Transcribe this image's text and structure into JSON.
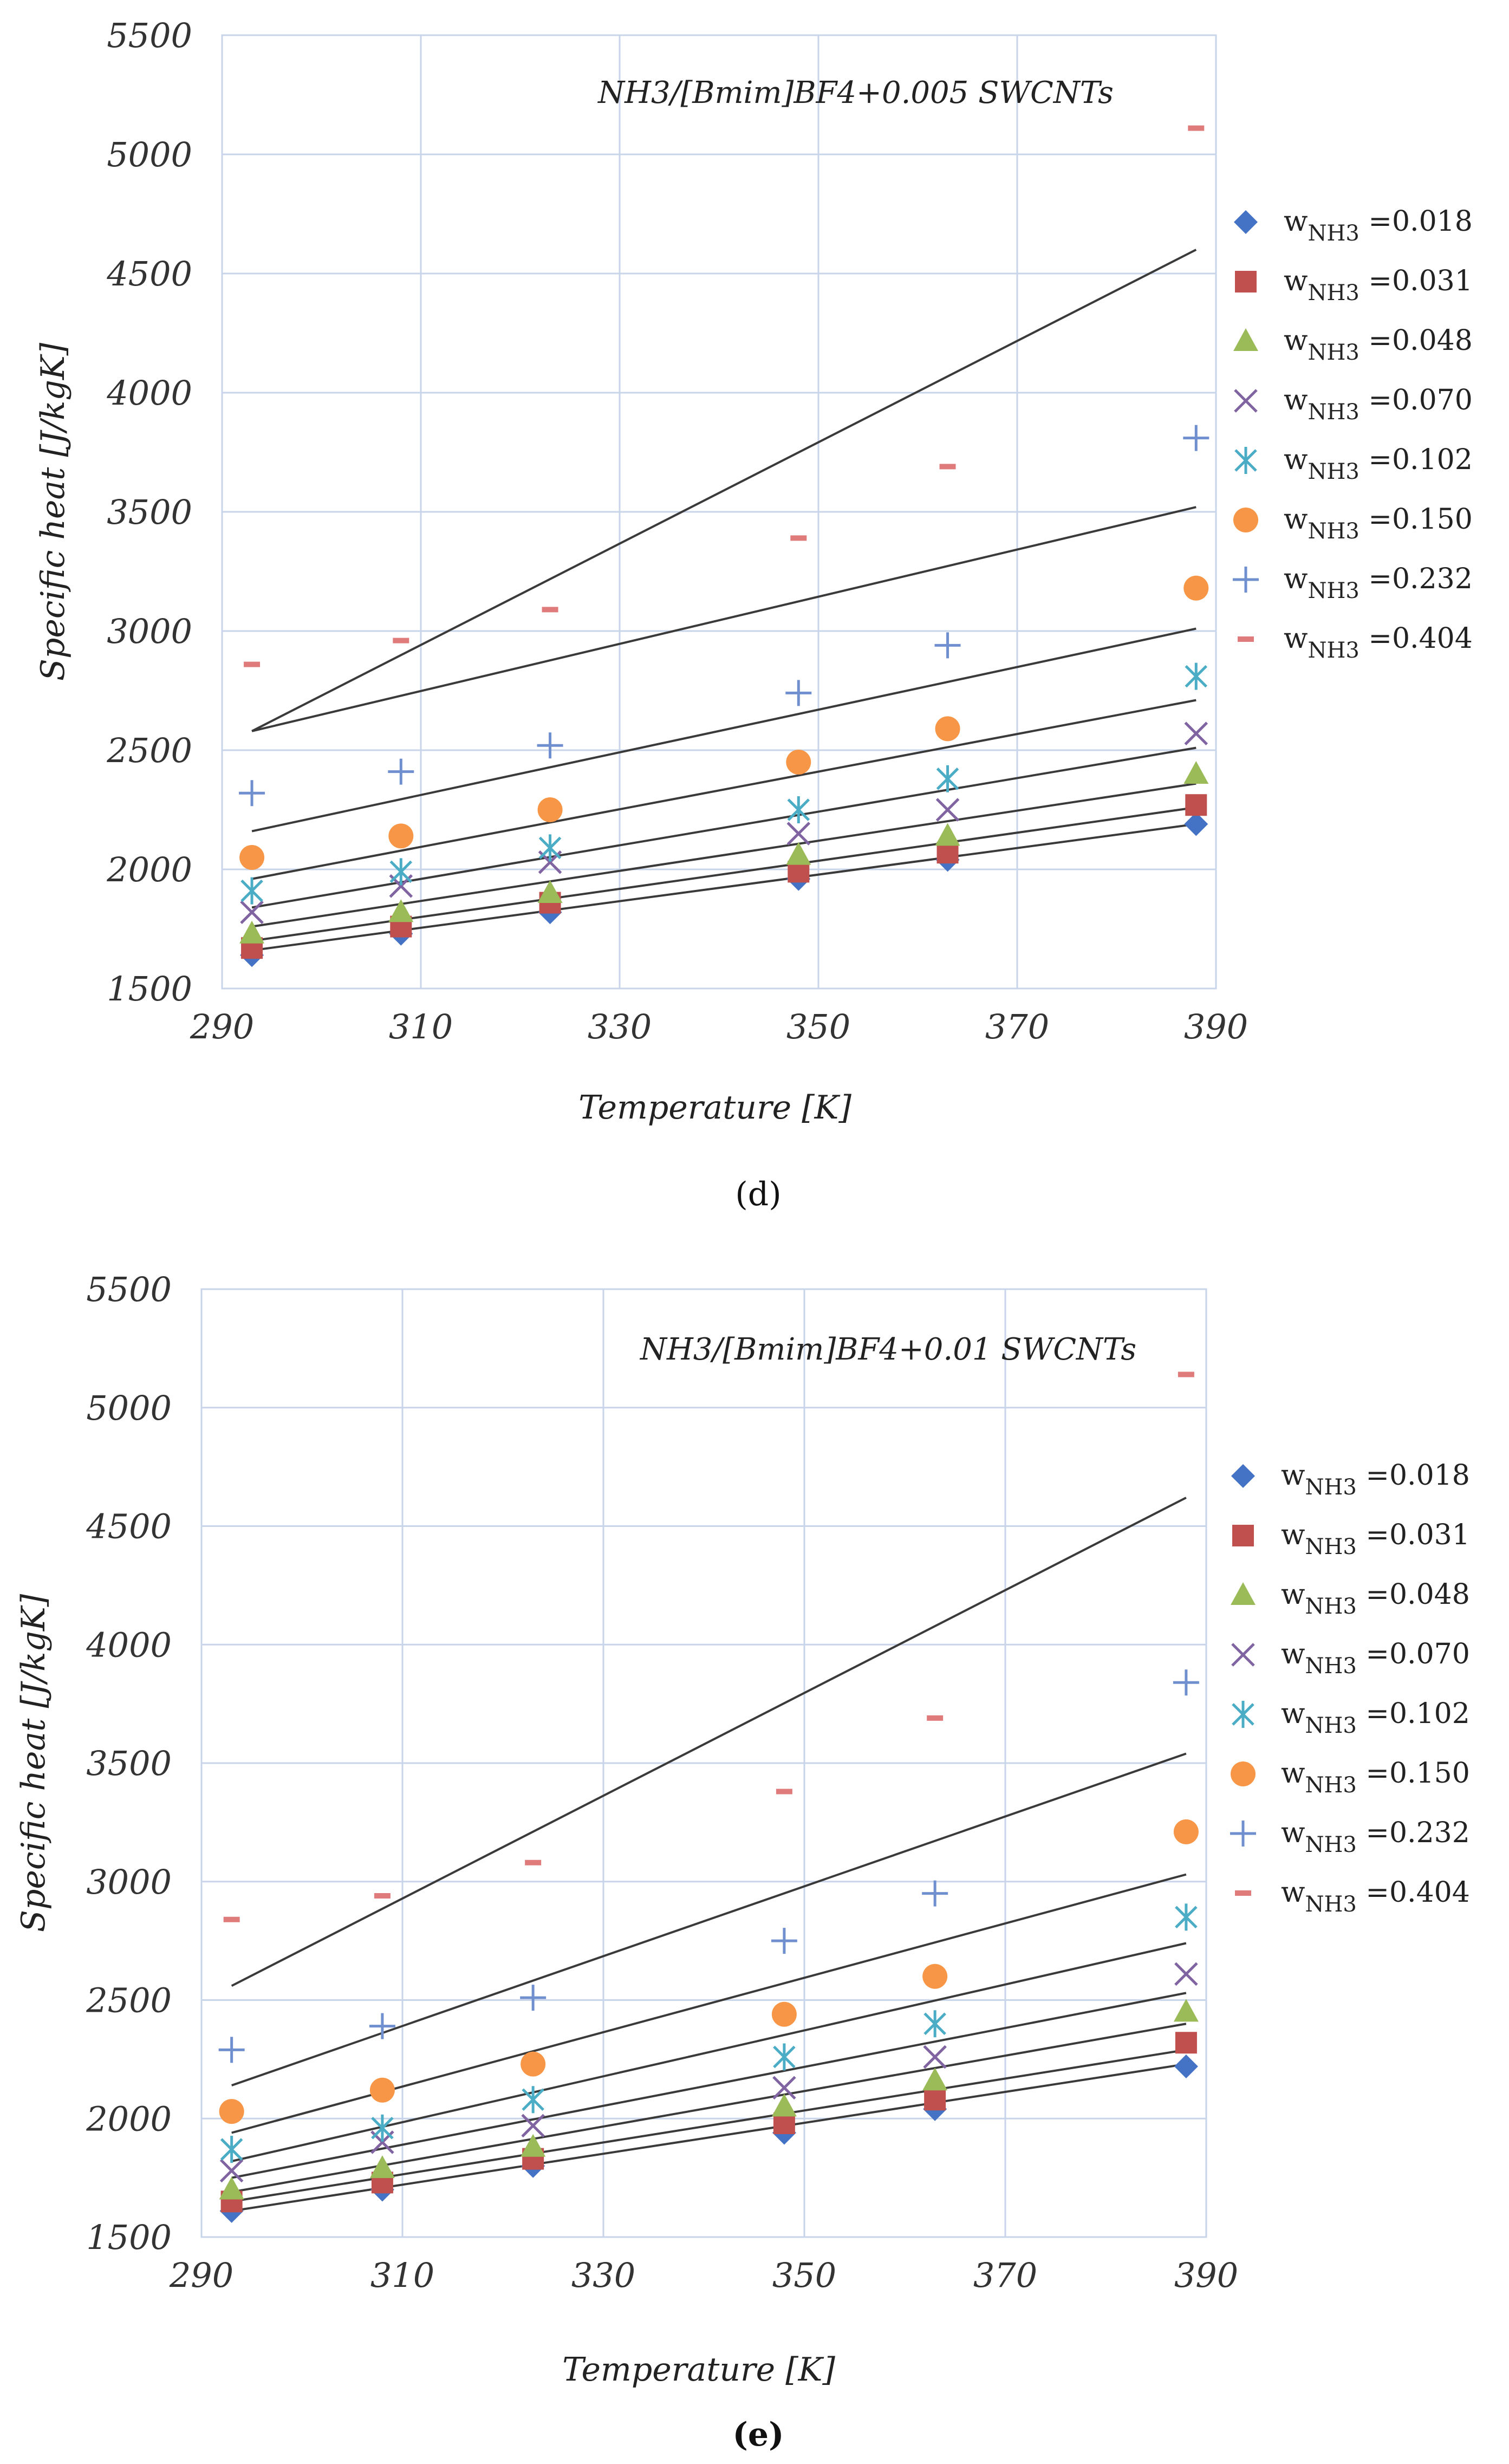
{
  "chart_data": [
    {
      "type": "scatter",
      "panel_label": "(d)",
      "title": "NH3/[Bmim]BF4+0.005 SWCNTs",
      "xlabel": "Temperature [K]",
      "ylabel": "Specific heat [J/kgK]",
      "xlim": [
        290,
        390
      ],
      "ylim": [
        1500,
        5500
      ],
      "xticks": [
        290,
        310,
        330,
        350,
        370,
        390
      ],
      "yticks": [
        1500,
        2000,
        2500,
        3000,
        3500,
        4000,
        4500,
        5000,
        5500
      ],
      "x": [
        293,
        308,
        323,
        348,
        363,
        388
      ],
      "series": [
        {
          "name": "0.018",
          "marker": "diamond",
          "color": "#4472c4",
          "values": [
            1640,
            1730,
            1820,
            1960,
            2040,
            2190
          ],
          "fit": [
            1660,
            2190
          ]
        },
        {
          "name": "0.031",
          "marker": "square",
          "color": "#c0504d",
          "values": [
            1670,
            1760,
            1860,
            1990,
            2070,
            2270
          ],
          "fit": [
            1700,
            2260
          ]
        },
        {
          "name": "0.048",
          "marker": "triangle",
          "color": "#9bbb59",
          "values": [
            1730,
            1820,
            1900,
            2060,
            2140,
            2400
          ],
          "fit": [
            1760,
            2360
          ]
        },
        {
          "name": "0.070",
          "marker": "x",
          "color": "#8064a2",
          "values": [
            1820,
            1930,
            2030,
            2150,
            2250,
            2570
          ],
          "fit": [
            1840,
            2510
          ]
        },
        {
          "name": "0.102",
          "marker": "star",
          "color": "#4bacc6",
          "values": [
            1910,
            1990,
            2090,
            2250,
            2380,
            2810
          ],
          "fit": [
            1960,
            2710
          ]
        },
        {
          "name": "0.150",
          "marker": "circle",
          "color": "#f79646",
          "values": [
            2050,
            2140,
            2250,
            2450,
            2590,
            3180
          ],
          "fit": [
            2160,
            3010
          ]
        },
        {
          "name": "0.232",
          "marker": "plus",
          "color": "#6f8fcf",
          "values": [
            2320,
            2410,
            2520,
            2740,
            2940,
            3810
          ],
          "fit": [
            2580,
            3520
          ]
        },
        {
          "name": "0.404",
          "marker": "dash",
          "color": "#e07b7b",
          "values": [
            2860,
            2960,
            3090,
            3390,
            3690,
            5110
          ],
          "fit": [
            2580,
            4600
          ]
        }
      ]
    },
    {
      "type": "scatter",
      "panel_label": "(e)",
      "title": "NH3/[Bmim]BF4+0.01 SWCNTs",
      "xlabel": "Temperature [K]",
      "ylabel": "Specific heat [J/kgK]",
      "xlim": [
        290,
        390
      ],
      "ylim": [
        1500,
        5500
      ],
      "xticks": [
        290,
        310,
        330,
        350,
        370,
        390
      ],
      "yticks": [
        1500,
        2000,
        2500,
        3000,
        3500,
        4000,
        4500,
        5000,
        5500
      ],
      "x": [
        293,
        308,
        323,
        348,
        363,
        388
      ],
      "series": [
        {
          "name": "0.018",
          "marker": "diamond",
          "color": "#4472c4",
          "values": [
            1610,
            1700,
            1800,
            1940,
            2040,
            2220
          ],
          "fit": [
            1610,
            2230
          ]
        },
        {
          "name": "0.031",
          "marker": "square",
          "color": "#c0504d",
          "values": [
            1650,
            1730,
            1830,
            1980,
            2080,
            2320
          ],
          "fit": [
            1650,
            2290
          ]
        },
        {
          "name": "0.048",
          "marker": "triangle",
          "color": "#9bbb59",
          "values": [
            1700,
            1790,
            1880,
            2050,
            2160,
            2450
          ],
          "fit": [
            1690,
            2400
          ]
        },
        {
          "name": "0.070",
          "marker": "x",
          "color": "#8064a2",
          "values": [
            1780,
            1900,
            1970,
            2130,
            2260,
            2610
          ],
          "fit": [
            1750,
            2530
          ]
        },
        {
          "name": "0.102",
          "marker": "star",
          "color": "#4bacc6",
          "values": [
            1870,
            1960,
            2080,
            2260,
            2400,
            2850
          ],
          "fit": [
            1820,
            2740
          ]
        },
        {
          "name": "0.150",
          "marker": "circle",
          "color": "#f79646",
          "values": [
            2030,
            2120,
            2230,
            2440,
            2600,
            3210
          ],
          "fit": [
            1940,
            3030
          ]
        },
        {
          "name": "0.232",
          "marker": "plus",
          "color": "#6f8fcf",
          "values": [
            2290,
            2390,
            2510,
            2750,
            2950,
            3840
          ],
          "fit": [
            2140,
            3540
          ]
        },
        {
          "name": "0.404",
          "marker": "dash",
          "color": "#e07b7b",
          "values": [
            2840,
            2940,
            3080,
            3380,
            3690,
            5140
          ],
          "fit": [
            2560,
            4620
          ]
        }
      ]
    }
  ],
  "legend": {
    "prefix": "w",
    "subscript": "NH3",
    "separator": " =",
    "entries": [
      "0.018",
      "0.031",
      "0.048",
      "0.070",
      "0.102",
      "0.150",
      "0.232",
      "0.404"
    ]
  }
}
